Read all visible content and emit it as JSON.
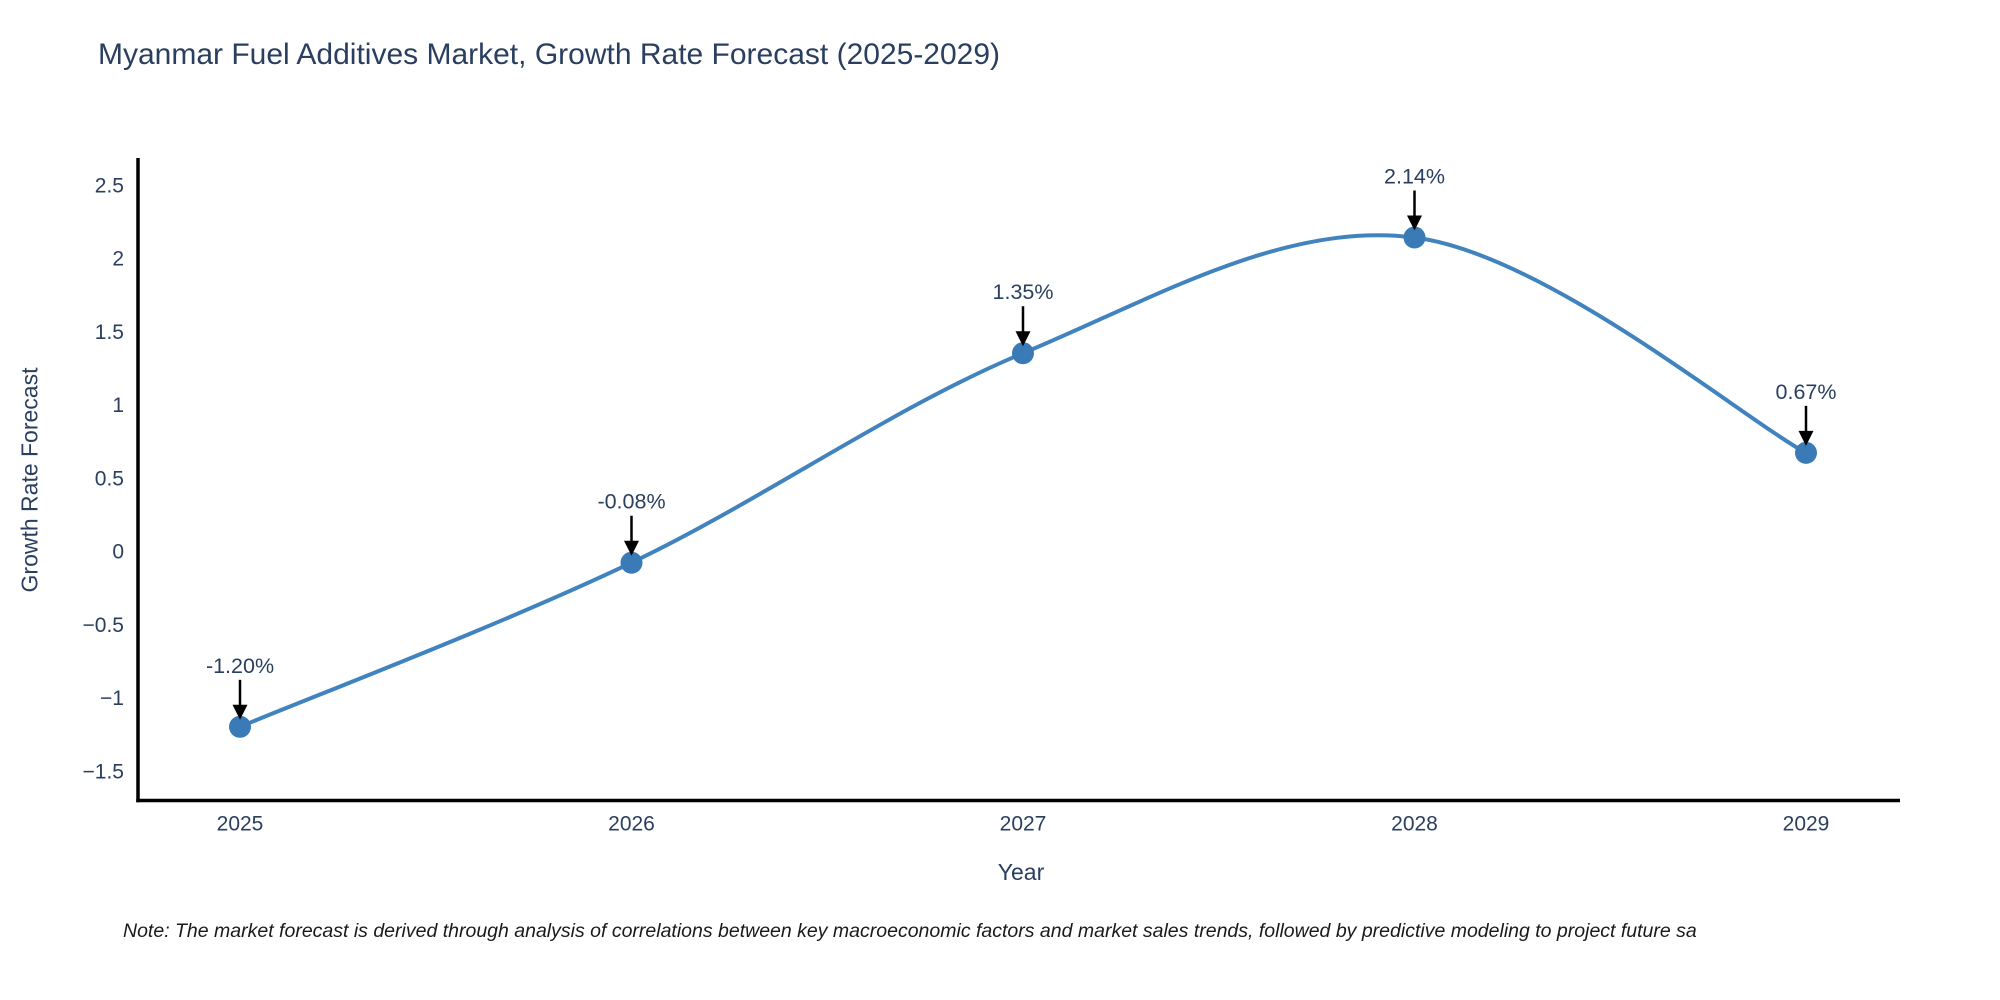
{
  "chart_data": {
    "type": "line",
    "title": "Myanmar Fuel Additives Market, Growth Rate Forecast (2025-2029)",
    "xlabel": "Year",
    "ylabel": "Growth Rate Forecast",
    "categories": [
      "2025",
      "2026",
      "2027",
      "2028",
      "2029"
    ],
    "series": [
      {
        "name": "Growth Rate Forecast",
        "values": [
          -1.2,
          -0.08,
          1.35,
          2.14,
          0.67
        ],
        "point_labels": [
          "-1.20%",
          "-0.08%",
          "1.35%",
          "2.14%",
          "0.67%"
        ]
      }
    ],
    "line_shape": "spline",
    "markers": true,
    "grid": false,
    "legend_position": "none",
    "ylim": [
      -1.71,
      2.67
    ],
    "yticks": [
      {
        "v": 2.5,
        "label": "2.5"
      },
      {
        "v": 2,
        "label": "2"
      },
      {
        "v": 1.5,
        "label": "1.5"
      },
      {
        "v": 1,
        "label": "1"
      },
      {
        "v": 0.5,
        "label": "0.5"
      },
      {
        "v": 0,
        "label": "0"
      },
      {
        "v": -0.5,
        "label": "−0.5"
      },
      {
        "v": -1,
        "label": "−1"
      },
      {
        "v": -1.5,
        "label": "−1.5"
      }
    ],
    "colors": {
      "line": "#4183be",
      "marker": "#3a7ab6",
      "axis": "#000000",
      "text": "#2a3f5f",
      "arrow": "#000000",
      "background": "#ffffff"
    },
    "note": "Note: The market forecast is derived through analysis of correlations between key macroeconomic factors and market sales trends, followed by predictive modeling to project future sa"
  }
}
